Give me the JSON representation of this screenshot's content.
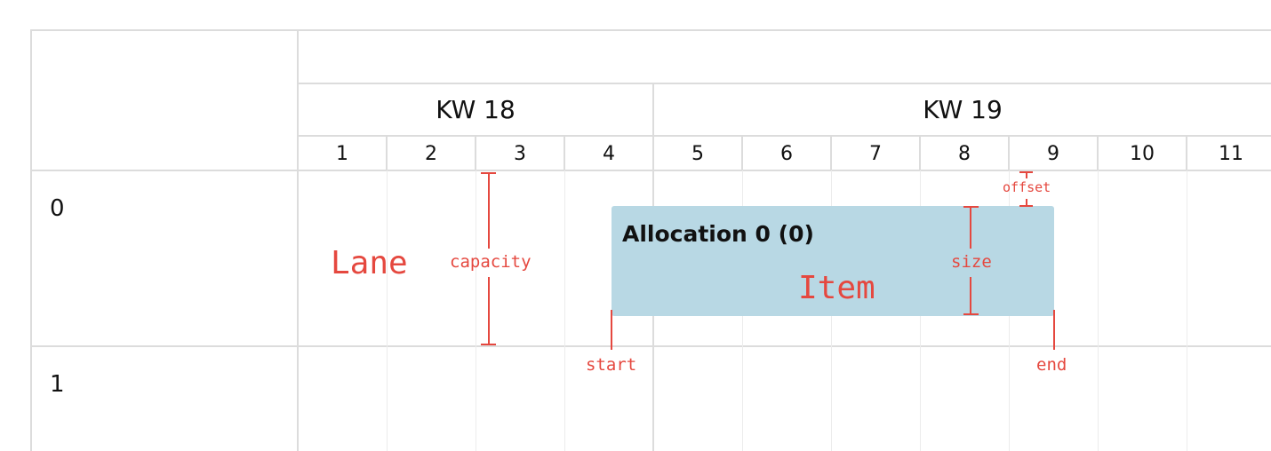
{
  "timeline": {
    "weeks": [
      {
        "label": "KW 18"
      },
      {
        "label": "KW 19"
      }
    ],
    "days": [
      "1",
      "2",
      "3",
      "4",
      "5",
      "6",
      "7",
      "8",
      "9",
      "10",
      "11"
    ]
  },
  "lanes": [
    {
      "label": "0"
    },
    {
      "label": "1"
    }
  ],
  "item": {
    "title": "Allocation 0 (0)"
  },
  "annotations": {
    "lane": "Lane",
    "capacity": "capacity",
    "item": "Item",
    "size": "size",
    "offset": "offset",
    "start": "start",
    "end": "end"
  },
  "colors": {
    "item_fill": "#b8d8e4",
    "annotation": "#e5483f",
    "grid": "#dcdcdc"
  }
}
